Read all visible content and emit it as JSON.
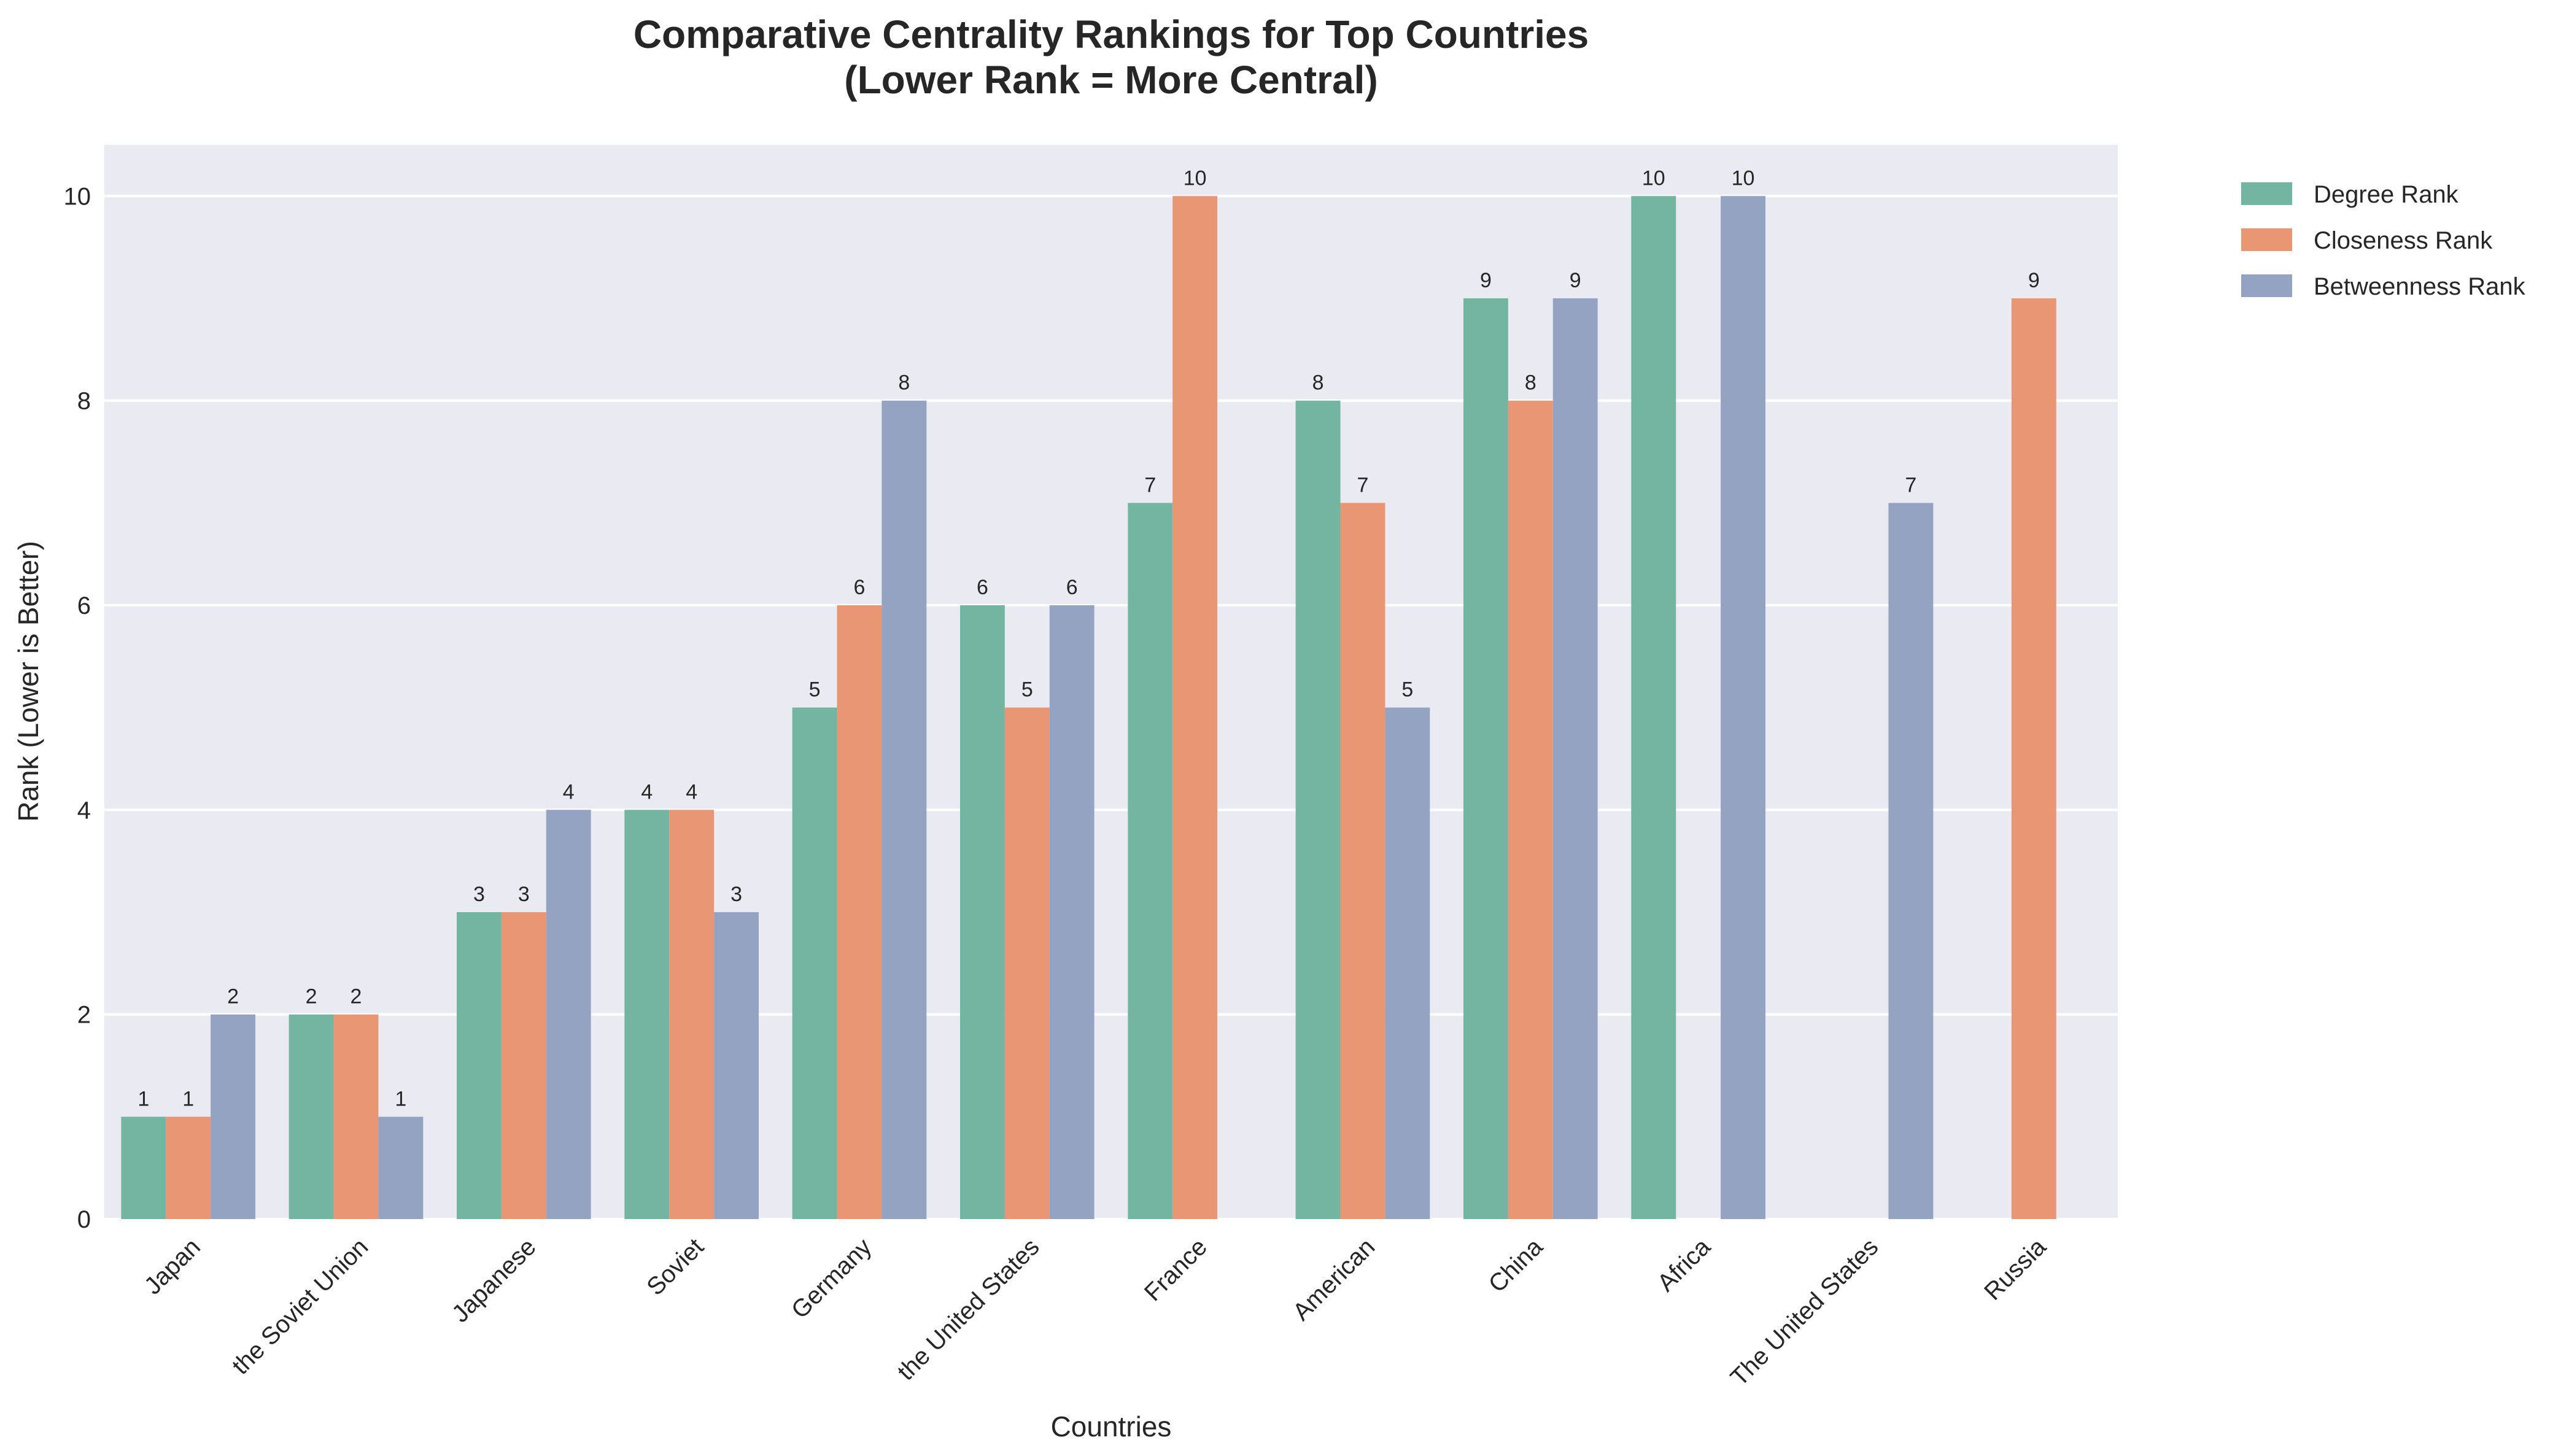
{
  "chart_data": {
    "type": "bar",
    "title": "Comparative Centrality Rankings for Top Countries",
    "subtitle": "(Lower Rank = More Central)",
    "xlabel": "Countries",
    "ylabel": "Rank (Lower is Better)",
    "ylim": [
      0,
      10.5
    ],
    "yticks": [
      0,
      2,
      4,
      6,
      8,
      10
    ],
    "grid": true,
    "legend_position": "outside-top-right",
    "categories": [
      "Japan",
      "the Soviet Union",
      "Japanese",
      "Soviet",
      "Germany",
      "the United States",
      "France",
      "American",
      "China",
      "Africa",
      "The United States",
      "Russia"
    ],
    "series": [
      {
        "name": "Degree Rank",
        "color": "#73b5a0",
        "values": [
          1,
          2,
          3,
          4,
          5,
          6,
          7,
          8,
          9,
          10,
          null,
          null
        ]
      },
      {
        "name": "Closeness Rank",
        "color": "#e99675",
        "values": [
          1,
          2,
          3,
          4,
          6,
          5,
          10,
          7,
          8,
          null,
          null,
          9
        ]
      },
      {
        "name": "Betweenness Rank",
        "color": "#95a3c2",
        "values": [
          2,
          1,
          4,
          3,
          8,
          6,
          null,
          5,
          9,
          10,
          7,
          null
        ]
      }
    ],
    "background_color": "#eaeaf2"
  }
}
